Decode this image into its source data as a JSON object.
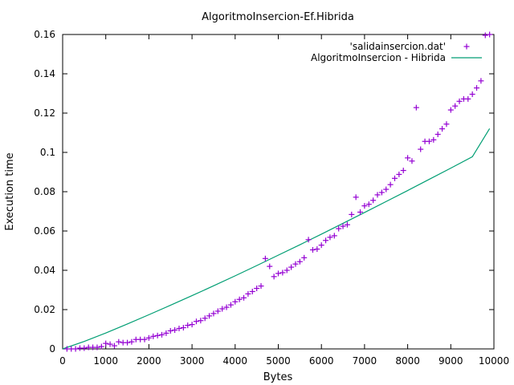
{
  "chart_data": {
    "type": "scatter",
    "title": "AlgoritmoInsercion-Ef.Hibrida",
    "xlabel": "Bytes",
    "ylabel": "Execution time",
    "xlim": [
      0,
      10000
    ],
    "ylim": [
      0,
      0.16
    ],
    "xticks": [
      0,
      1000,
      2000,
      3000,
      4000,
      5000,
      6000,
      7000,
      8000,
      9000,
      10000
    ],
    "yticks": [
      0,
      0.02,
      0.04,
      0.06,
      0.08,
      0.1,
      0.12,
      0.14,
      0.16
    ],
    "grid": false,
    "legend_position": "top-right",
    "series": [
      {
        "name": "'salidainsercion.dat'",
        "kind": "points",
        "marker": "plus",
        "color": "#9400d3",
        "x": [
          100,
          200,
          300,
          400,
          500,
          600,
          700,
          800,
          900,
          1000,
          1100,
          1200,
          1300,
          1400,
          1500,
          1600,
          1700,
          1800,
          1900,
          2000,
          2100,
          2200,
          2300,
          2400,
          2500,
          2600,
          2700,
          2800,
          2900,
          3000,
          3100,
          3200,
          3300,
          3400,
          3500,
          3600,
          3700,
          3800,
          3900,
          4000,
          4100,
          4200,
          4300,
          4400,
          4500,
          4600,
          4700,
          4800,
          4900,
          5000,
          5100,
          5200,
          5300,
          5400,
          5500,
          5600,
          5700,
          5800,
          5900,
          6000,
          6100,
          6200,
          6300,
          6400,
          6500,
          6600,
          6700,
          6800,
          6900,
          7000,
          7100,
          7200,
          7300,
          7400,
          7500,
          7600,
          7700,
          7800,
          7900,
          8000,
          8100,
          8200,
          8300,
          8400,
          8500,
          8600,
          8700,
          8800,
          8900,
          9000,
          9100,
          9200,
          9300,
          9400,
          9500,
          9600,
          9700,
          9800,
          9900
        ],
        "y": [
          0.0,
          0.0,
          0.0,
          0.0004,
          0.0004,
          0.0008,
          0.0008,
          0.0008,
          0.0012,
          0.0028,
          0.0024,
          0.0016,
          0.0036,
          0.0032,
          0.0032,
          0.0036,
          0.0048,
          0.0048,
          0.0048,
          0.0056,
          0.0064,
          0.0068,
          0.0072,
          0.008,
          0.0092,
          0.0096,
          0.0104,
          0.0108,
          0.012,
          0.0124,
          0.014,
          0.0144,
          0.0156,
          0.0168,
          0.018,
          0.0192,
          0.0204,
          0.0212,
          0.0224,
          0.024,
          0.0252,
          0.026,
          0.028,
          0.0292,
          0.0308,
          0.032,
          0.046,
          0.042,
          0.0368,
          0.0384,
          0.0388,
          0.04,
          0.0416,
          0.0432,
          0.0444,
          0.0464,
          0.0556,
          0.0504,
          0.0508,
          0.0528,
          0.0552,
          0.0568,
          0.0576,
          0.0612,
          0.0624,
          0.0632,
          0.0684,
          0.0772,
          0.0696,
          0.0728,
          0.0736,
          0.0756,
          0.0784,
          0.0796,
          0.0812,
          0.0836,
          0.0868,
          0.0888,
          0.0908,
          0.0972,
          0.0956,
          0.1228,
          0.1016,
          0.1056,
          0.1056,
          0.1064,
          0.1092,
          0.112,
          0.1144,
          0.1216,
          0.1236,
          0.126,
          0.1272,
          0.1272,
          0.1296,
          0.1328,
          0.1364,
          0.1596,
          0.16
        ]
      },
      {
        "name": "AlgoritmoInsercion - Hibrida",
        "kind": "line",
        "color": "#009e73",
        "x": [
          0,
          500,
          1000,
          1500,
          2000,
          2500,
          3000,
          3500,
          4000,
          4500,
          5000,
          5500,
          6000,
          6500,
          7000,
          7500,
          8000,
          8500,
          9000,
          9500,
          9900
        ],
        "y": [
          0.0,
          0.0038,
          0.0081,
          0.0127,
          0.0174,
          0.0222,
          0.0271,
          0.0321,
          0.0372,
          0.0424,
          0.0477,
          0.053,
          0.0584,
          0.0639,
          0.0694,
          0.075,
          0.0806,
          0.0863,
          0.092,
          0.0978,
          0.1121
        ]
      }
    ]
  }
}
